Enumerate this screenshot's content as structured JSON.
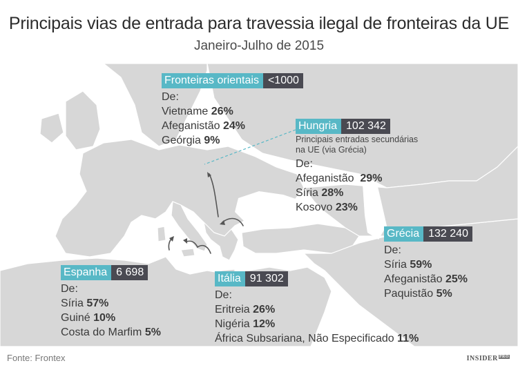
{
  "title": "Principais vias de entrada para travessia ilegal de fronteiras da UE",
  "subtitle": "Janeiro-Julho de 2015",
  "colors": {
    "land": "#d7d7d7",
    "sea": "#ffffff",
    "name_bg": "#58b8c6",
    "count_bg": "#4a4a52"
  },
  "regions": {
    "eastern": {
      "name": "Fronteiras orientais",
      "count": "<1000",
      "from": "De:",
      "items": [
        {
          "country": "Vietname",
          "pct": "26%"
        },
        {
          "country": "Afeganistão",
          "pct": "24%"
        },
        {
          "country": "Geórgia",
          "pct": "9%"
        }
      ]
    },
    "hungary": {
      "name": "Hungria",
      "count": "102 342",
      "note1": "Principais entradas secundárias",
      "note2": "na UE (via Grécia)",
      "from": "De:",
      "items": [
        {
          "country": "Afeganistão",
          "pct": "29%"
        },
        {
          "country": "Síria",
          "pct": "28%"
        },
        {
          "country": "Kosovo",
          "pct": "23%"
        }
      ]
    },
    "greece": {
      "name": "Grécia",
      "count": "132 240",
      "from": "De:",
      "items": [
        {
          "country": "Síria",
          "pct": "59%"
        },
        {
          "country": "Afeganistão",
          "pct": "25%"
        },
        {
          "country": "Paquistão",
          "pct": "5%"
        }
      ]
    },
    "spain": {
      "name": "Espanha",
      "count": "6 698",
      "from": "De:",
      "items": [
        {
          "country": "Síria",
          "pct": "57%"
        },
        {
          "country": "Guiné",
          "pct": "10%"
        },
        {
          "country": "Costa do Marfim",
          "pct": "5%"
        }
      ]
    },
    "italy": {
      "name": "Itália",
      "count": "91 302",
      "from": "De:",
      "items": [
        {
          "country": "Eritreia",
          "pct": "26%"
        },
        {
          "country": "Nigéria",
          "pct": "12%"
        },
        {
          "country": "África Subsariana, Não Especificado",
          "pct": "11%"
        }
      ]
    }
  },
  "source": "Fonte: Frontex",
  "logo": {
    "main": "INSIDER",
    "sub": "PRO"
  }
}
